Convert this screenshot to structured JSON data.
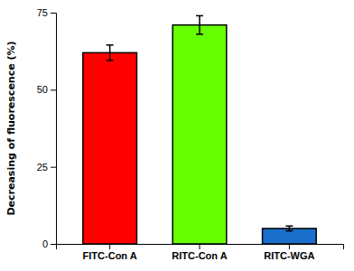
{
  "chart_data": {
    "type": "bar",
    "categories": [
      "FITC-Con A",
      "RITC-Con A",
      "RITC-WGA"
    ],
    "values": [
      62.0,
      71.0,
      5.0
    ],
    "errors": [
      2.5,
      3.0,
      0.8
    ],
    "colors": [
      "#ff0000",
      "#66ff00",
      "#1a6fcc"
    ],
    "ylabel": "Decreasing of fluorescence (%)",
    "ylim": [
      0,
      75
    ],
    "yticks": [
      0,
      25,
      50,
      75
    ]
  }
}
